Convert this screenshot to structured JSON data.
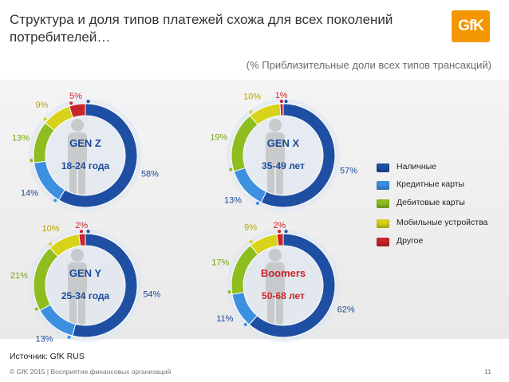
{
  "title": "Структура и доля типов платежей схожа для всех поколений потребителей…",
  "logo_text": "GfK",
  "subtitle": "(% Приблизительные доли всех типов трансакций)",
  "colors": {
    "cash": "#1f4fa3",
    "credit": "#3d8fe0",
    "debit": "#8ebd1f",
    "mobile": "#d8d21a",
    "other": "#c8252c",
    "ring_bg": "#dde5f2",
    "label": "#1a4a9a"
  },
  "chart_data": [
    {
      "type": "donut",
      "title": "GEN Z",
      "subtitle": "18-24 года",
      "categories": [
        "Наличные",
        "Кредитные карты",
        "Дебитовые карты",
        "Мобильные устройства",
        "Другое"
      ],
      "values": [
        58,
        14,
        13,
        9,
        5
      ],
      "labels": [
        "58%",
        "14%",
        "13%",
        "9%",
        "5%"
      ]
    },
    {
      "type": "donut",
      "title": "GEN X",
      "subtitle": "35-49 лет",
      "categories": [
        "Наличные",
        "Кредитные карты",
        "Дебитовые карты",
        "Мобильные устройства",
        "Другое"
      ],
      "values": [
        57,
        13,
        19,
        10,
        1
      ],
      "labels": [
        "57%",
        "13%",
        "19%",
        "10%",
        "1%"
      ]
    },
    {
      "type": "donut",
      "title": "GEN Y",
      "subtitle": "25-34 года",
      "categories": [
        "Наличные",
        "Кредитные карты",
        "Дебитовые карты",
        "Мобильные устройства",
        "Другое"
      ],
      "values": [
        54,
        13,
        21,
        10,
        2
      ],
      "labels": [
        "54%",
        "13%",
        "21%",
        "10%",
        "2%"
      ]
    },
    {
      "type": "donut",
      "title": "Boomers",
      "subtitle": "50-68 лет",
      "categories": [
        "Наличные",
        "Кредитные карты",
        "Дебитовые карты",
        "Мобильные устройства",
        "Другое"
      ],
      "values": [
        62,
        11,
        17,
        9,
        2
      ],
      "labels": [
        "62%",
        "11%",
        "17%",
        "9%",
        "2%"
      ]
    }
  ],
  "legend": [
    {
      "label": "Наличные",
      "color": "#1f4fa3"
    },
    {
      "label": "Кредитные карты",
      "color": "#3d8fe0"
    },
    {
      "label": "Дебитовые карты",
      "color": "#8ebd1f"
    },
    {
      "label": "Мобильные устройства",
      "color": "#d8d21a"
    },
    {
      "label": "Другое",
      "color": "#c8252c"
    }
  ],
  "source": "Источник: GfK RUS",
  "footer": "© GfK 2015 | Восприятие финансовых организаций",
  "page_number": "11"
}
